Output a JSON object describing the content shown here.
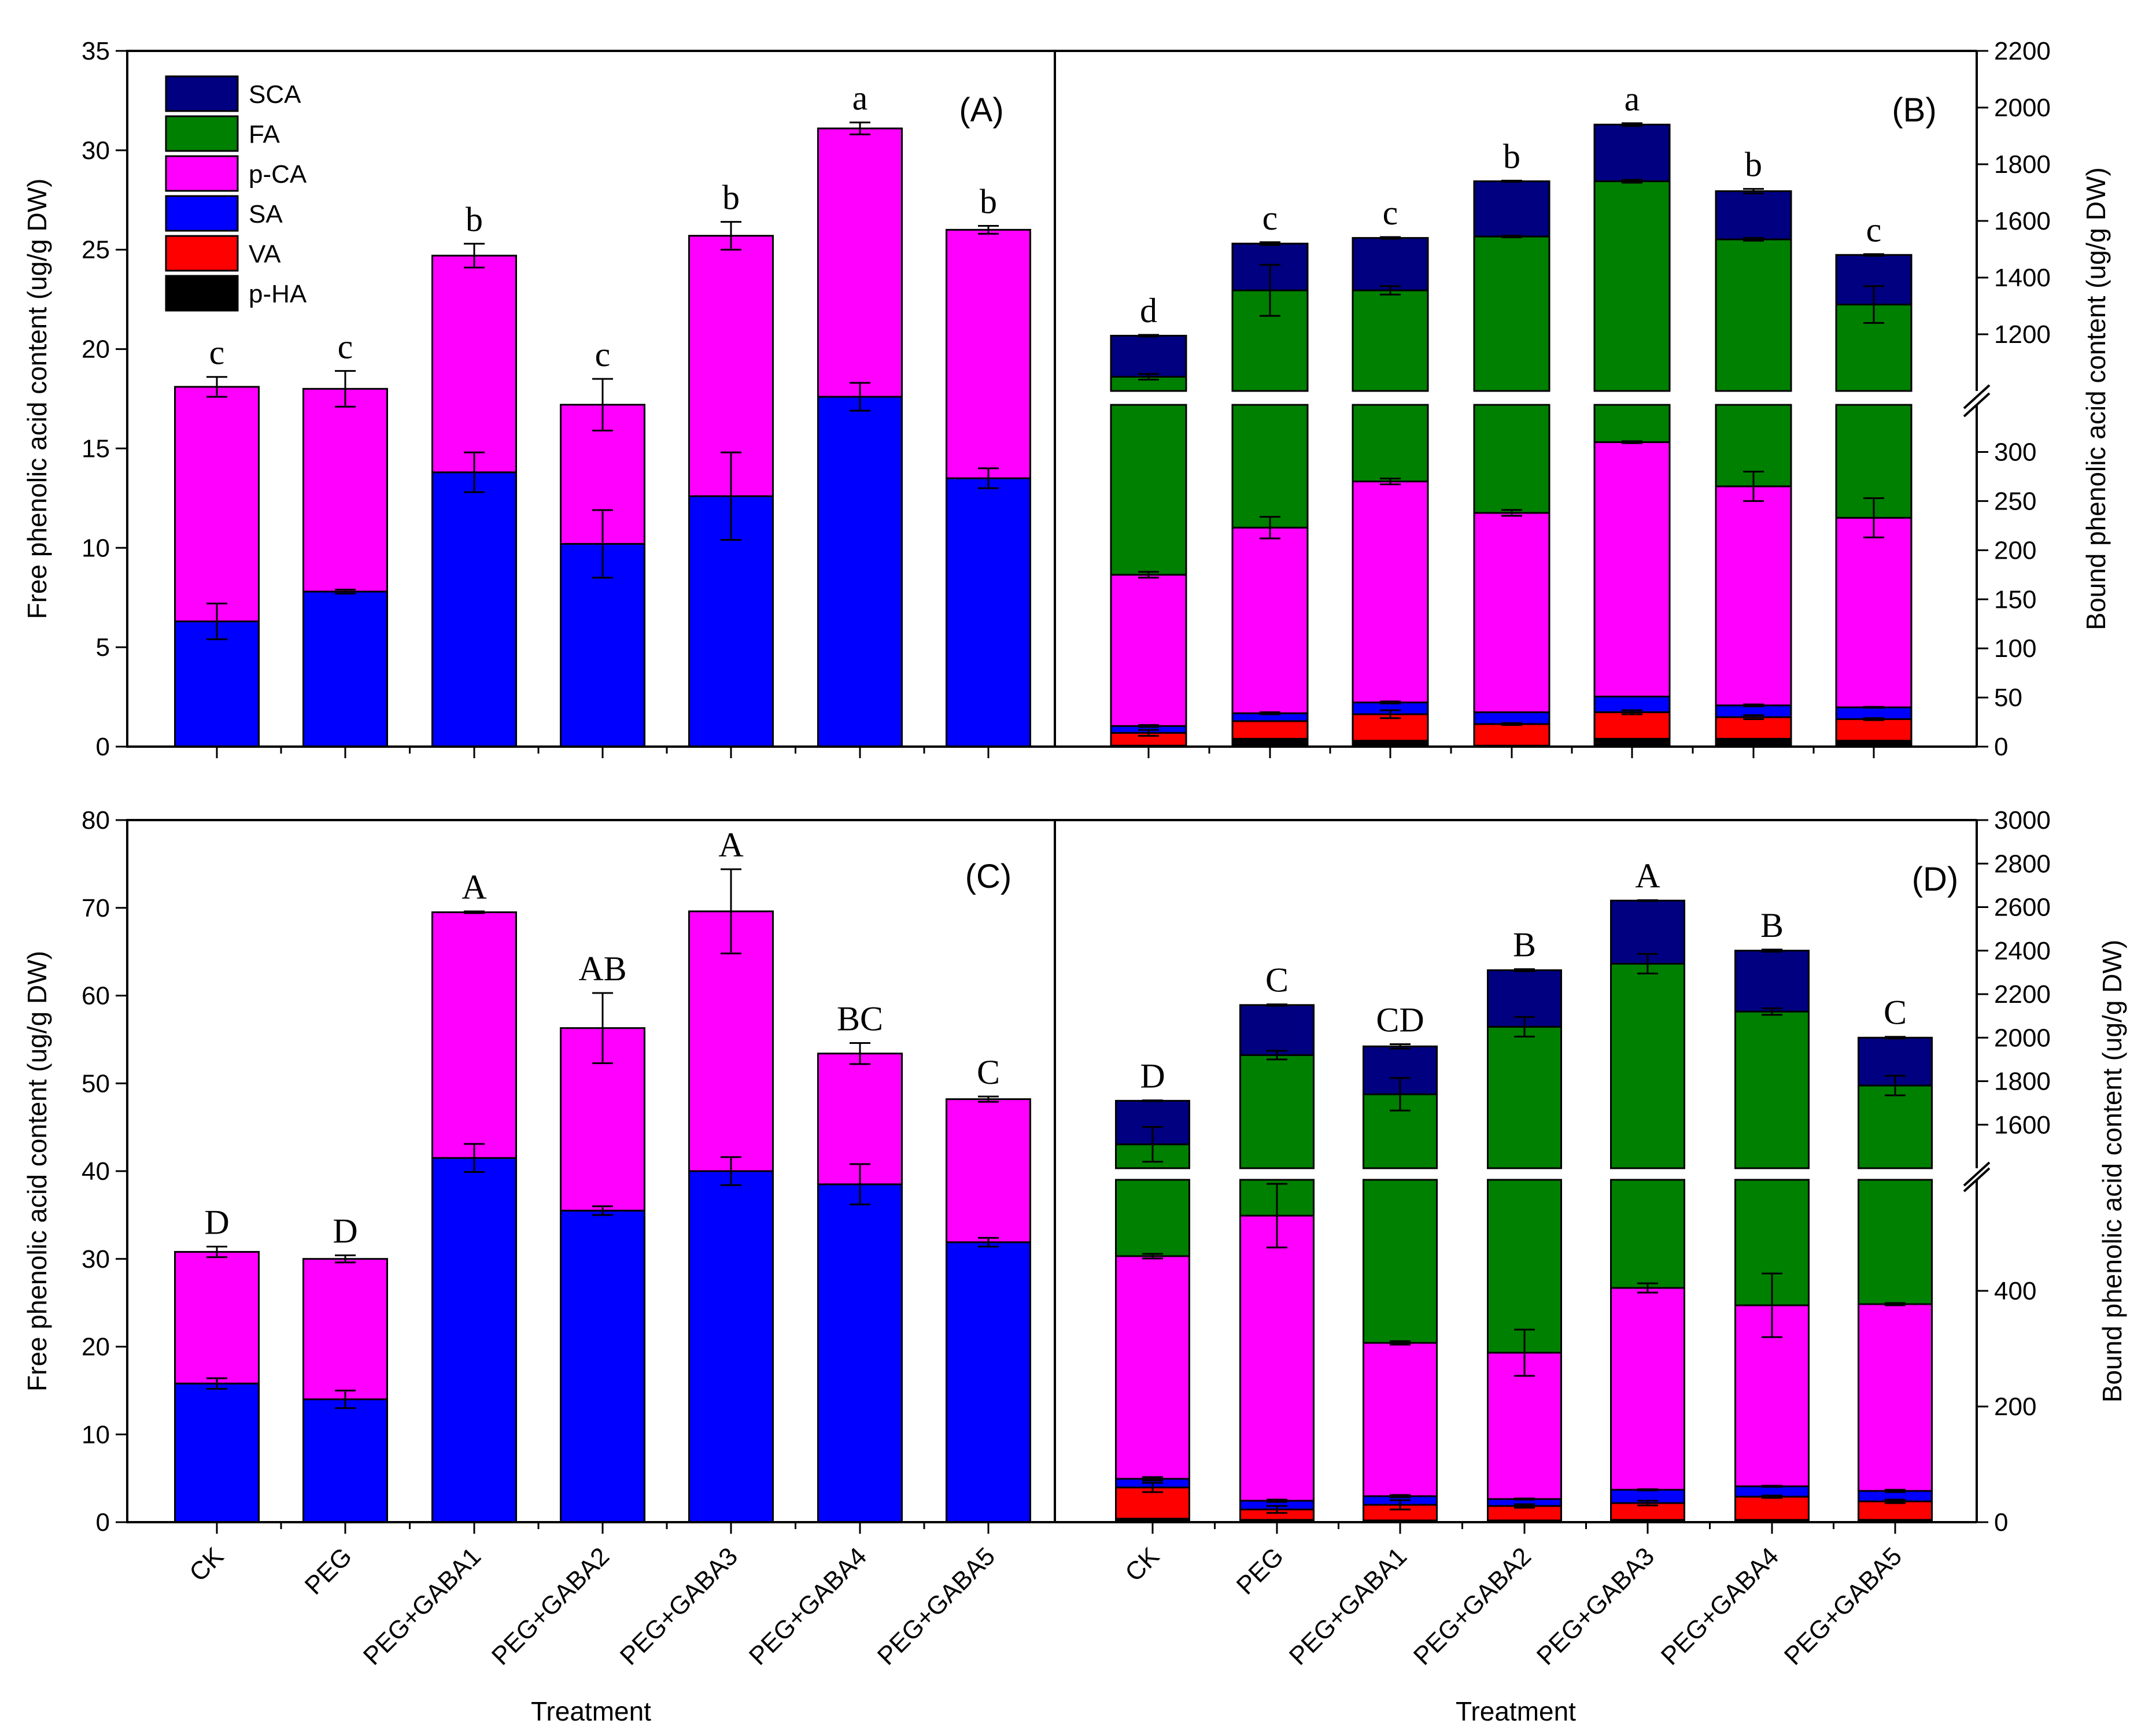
{
  "chart_data": [
    {
      "panel": "(A)",
      "type": "bar",
      "stacked": true,
      "categories": [
        "CK",
        "PEG",
        "PEG+GABA1",
        "PEG+GABA2",
        "PEG+GABA3",
        "PEG+GABA4",
        "PEG+GABA5"
      ],
      "ylabel": "Free phenolic acid content (ug/g DW)",
      "ylim": [
        0,
        35
      ],
      "yticks": [
        0,
        5,
        10,
        15,
        20,
        25,
        30,
        35
      ],
      "legend": {
        "placement": "top-left",
        "entries": [
          {
            "name": "SCA",
            "color": "#000080"
          },
          {
            "name": "FA",
            "color": "#008000"
          },
          {
            "name": "p-CA",
            "color": "#ff00ff"
          },
          {
            "name": "SA",
            "color": "#0000ff"
          },
          {
            "name": "VA",
            "color": "#ff0000"
          },
          {
            "name": "p-HA",
            "color": "#000000"
          }
        ]
      },
      "series": [
        {
          "name": "SA",
          "color": "#0000ff",
          "values": [
            6.3,
            7.8,
            13.8,
            10.2,
            12.6,
            17.6,
            13.5
          ],
          "err": [
            0.9,
            0.1,
            1.0,
            1.7,
            2.2,
            0.7,
            0.5
          ]
        },
        {
          "name": "p-CA",
          "color": "#ff00ff",
          "values": [
            11.8,
            10.2,
            10.9,
            7.0,
            13.1,
            13.5,
            12.5
          ],
          "err": [
            0.5,
            0.9,
            0.6,
            1.3,
            0.7,
            0.3,
            0.2
          ]
        }
      ],
      "letters": [
        "c",
        "c",
        "b",
        "c",
        "b",
        "a",
        "b"
      ]
    },
    {
      "panel": "(B)",
      "type": "bar",
      "stacked": true,
      "categories": [
        "CK",
        "PEG",
        "PEG+GABA1",
        "PEG+GABA2",
        "PEG+GABA3",
        "PEG+GABA4",
        "PEG+GABA5"
      ],
      "ylabel": "Bound phenolic acid content (ug/g DW)",
      "ylim": [
        0,
        2200
      ],
      "axis_break": [
        348,
        1000
      ],
      "yticks": [
        0,
        50,
        100,
        150,
        200,
        250,
        300,
        1200,
        1400,
        1600,
        1800,
        2000,
        2200
      ],
      "series": [
        {
          "name": "p-HA",
          "color": "#000000",
          "values": [
            1,
            8,
            6,
            1,
            8,
            8,
            6
          ],
          "err": [
            0,
            0,
            0,
            0,
            0,
            0,
            0
          ]
        },
        {
          "name": "VA",
          "color": "#ff0000",
          "values": [
            13,
            18,
            27,
            22,
            27,
            22,
            22
          ],
          "err": [
            3,
            0,
            4,
            1,
            2,
            2,
            1
          ]
        },
        {
          "name": "SA",
          "color": "#0000ff",
          "values": [
            7,
            8,
            12,
            12,
            16,
            12,
            12
          ],
          "err": [
            1,
            1,
            1,
            0,
            0,
            1,
            0.5
          ]
        },
        {
          "name": "p-CA",
          "color": "#ff00ff",
          "values": [
            154,
            189,
            225,
            203,
            259,
            223,
            193
          ],
          "err": [
            3,
            11,
            3,
            3,
            1,
            15,
            20
          ]
        },
        {
          "name": "FA",
          "color": "#008000",
          "values": [
            875,
            1132,
            1085,
            1307,
            1430,
            1270,
            1072
          ],
          "err": [
            10,
            90,
            15,
            3,
            5,
            5,
            65
          ]
        },
        {
          "name": "SCA",
          "color": "#000080",
          "values": [
            145,
            165,
            185,
            195,
            200,
            170,
            175
          ],
          "err": [
            3,
            5,
            3,
            2,
            5,
            8,
            3
          ]
        }
      ],
      "letters": [
        "d",
        "c",
        "c",
        "b",
        "a",
        "b",
        "c"
      ]
    },
    {
      "panel": "(C)",
      "type": "bar",
      "stacked": true,
      "categories": [
        "CK",
        "PEG",
        "PEG+GABA1",
        "PEG+GABA2",
        "PEG+GABA3",
        "PEG+GABA4",
        "PEG+GABA5"
      ],
      "xlabel": "Treatment",
      "ylabel": "Free phenolic acid content (ug/g DW)",
      "ylim": [
        0,
        80
      ],
      "yticks": [
        0,
        10,
        20,
        30,
        40,
        50,
        60,
        70,
        80
      ],
      "series": [
        {
          "name": "SA",
          "color": "#0000ff",
          "values": [
            15.8,
            14.0,
            41.5,
            35.5,
            40.0,
            38.5,
            31.9
          ],
          "err": [
            0.6,
            1.0,
            1.6,
            0.5,
            1.6,
            2.3,
            0.5
          ]
        },
        {
          "name": "p-CA",
          "color": "#ff00ff",
          "values": [
            15.0,
            16.0,
            28.0,
            20.8,
            29.6,
            14.9,
            16.3
          ],
          "err": [
            0.6,
            0.4,
            0.1,
            4.0,
            4.8,
            1.2,
            0.3
          ]
        }
      ],
      "letters": [
        "D",
        "D",
        "A",
        "AB",
        "A",
        "BC",
        "C"
      ]
    },
    {
      "panel": "(D)",
      "type": "bar",
      "stacked": true,
      "categories": [
        "CK",
        "PEG",
        "PEG+GABA1",
        "PEG+GABA2",
        "PEG+GABA3",
        "PEG+GABA4",
        "PEG+GABA5"
      ],
      "xlabel": "Treatment",
      "ylabel": "Bound phenolic acid content (ug/g DW)",
      "ylim": [
        0,
        3000
      ],
      "axis_break": [
        592,
        1400
      ],
      "yticks": [
        0,
        200,
        400,
        1600,
        1800,
        2000,
        2200,
        2400,
        2600,
        2800,
        3000
      ],
      "series": [
        {
          "name": "p-HA",
          "color": "#000000",
          "values": [
            6,
            4,
            3,
            3,
            4,
            4,
            4
          ],
          "err": [
            0,
            0,
            0,
            0,
            0,
            0,
            0
          ]
        },
        {
          "name": "VA",
          "color": "#ff0000",
          "values": [
            54,
            18,
            27,
            25,
            29,
            40,
            32
          ],
          "err": [
            8,
            6,
            8,
            3,
            4,
            2,
            3
          ]
        },
        {
          "name": "SA",
          "color": "#0000ff",
          "values": [
            15,
            15,
            15,
            12,
            23,
            18,
            18
          ],
          "err": [
            3,
            2,
            2,
            1,
            1,
            1,
            2
          ]
        },
        {
          "name": "p-CA",
          "color": "#ff00ff",
          "values": [
            385,
            493,
            265,
            253,
            349,
            313,
            323
          ],
          "err": [
            4,
            55,
            3,
            40,
            8,
            55,
            2
          ]
        },
        {
          "name": "FA",
          "color": "#008000",
          "values": [
            1050,
            1390,
            1430,
            1757,
            1935,
            1745,
            1403
          ],
          "err": [
            80,
            20,
            75,
            45,
            45,
            15,
            45
          ]
        },
        {
          "name": "SCA",
          "color": "#000080",
          "values": [
            200,
            230,
            220,
            260,
            290,
            280,
            220
          ],
          "err": [
            2,
            3,
            10,
            5,
            2,
            5,
            4
          ]
        }
      ],
      "letters": [
        "D",
        "C",
        "CD",
        "B",
        "A",
        "B",
        "C"
      ]
    }
  ]
}
